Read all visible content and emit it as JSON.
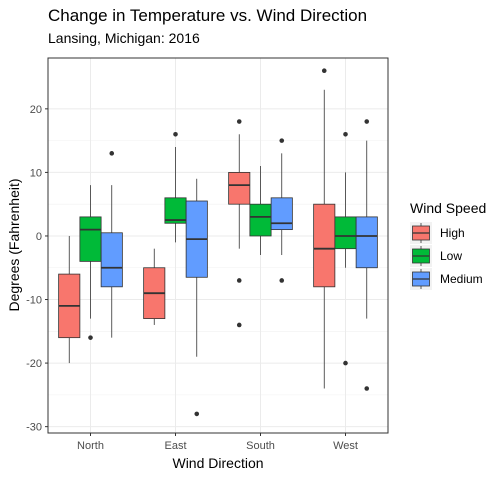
{
  "chart_data": {
    "type": "boxplot",
    "title": "Change in Temperature vs. Wind Direction",
    "subtitle": "Lansing, Michigan: 2016",
    "xlabel": "Wind Direction",
    "ylabel": "Degrees (Fahrenheit)",
    "ylim": [
      -31,
      28
    ],
    "yticks": [
      -30,
      -20,
      -10,
      0,
      10,
      20
    ],
    "categories": [
      "North",
      "East",
      "South",
      "West"
    ],
    "grid": true,
    "legend": {
      "title": "Wind Speed",
      "position": "right",
      "entries": [
        "High",
        "Low",
        "Medium"
      ]
    },
    "series": [
      {
        "name": "High",
        "color": "#F8766D",
        "boxes": [
          {
            "category": "North",
            "min": -20,
            "q1": -16,
            "median": -11,
            "q3": -6,
            "max": 0,
            "outliers": []
          },
          {
            "category": "East",
            "min": -14,
            "q1": -13,
            "median": -9,
            "q3": -5,
            "max": -2,
            "outliers": []
          },
          {
            "category": "South",
            "min": -2,
            "q1": 5,
            "median": 8,
            "q3": 10,
            "max": 16,
            "outliers": [
              18,
              -7,
              -14
            ]
          },
          {
            "category": "West",
            "min": -24,
            "q1": -8,
            "median": -2,
            "q3": 5,
            "max": 23,
            "outliers": [
              26
            ]
          }
        ]
      },
      {
        "name": "Low",
        "color": "#00BA38",
        "boxes": [
          {
            "category": "North",
            "min": -13,
            "q1": -4,
            "median": 1,
            "q3": 3,
            "max": 8,
            "outliers": [
              -16
            ]
          },
          {
            "category": "East",
            "min": -1,
            "q1": 2,
            "median": 2.5,
            "q3": 6,
            "max": 14,
            "outliers": [
              16
            ]
          },
          {
            "category": "South",
            "min": -3,
            "q1": 0,
            "median": 3,
            "q3": 5,
            "max": 11,
            "outliers": []
          },
          {
            "category": "West",
            "min": -5,
            "q1": -2,
            "median": 0,
            "q3": 3,
            "max": 10,
            "outliers": [
              16,
              -20
            ]
          }
        ]
      },
      {
        "name": "Medium",
        "color": "#619CFF",
        "boxes": [
          {
            "category": "North",
            "min": -16,
            "q1": -8,
            "median": -5,
            "q3": 0.5,
            "max": 8,
            "outliers": [
              13
            ]
          },
          {
            "category": "East",
            "min": -19,
            "q1": -6.5,
            "median": -0.5,
            "q3": 5.5,
            "max": 9,
            "outliers": [
              -28
            ]
          },
          {
            "category": "South",
            "min": -3,
            "q1": 1,
            "median": 2,
            "q3": 6,
            "max": 13,
            "outliers": [
              15,
              -7
            ]
          },
          {
            "category": "West",
            "min": -13,
            "q1": -5,
            "median": 0,
            "q3": 3,
            "max": 15,
            "outliers": [
              18,
              -24
            ]
          }
        ]
      }
    ]
  }
}
